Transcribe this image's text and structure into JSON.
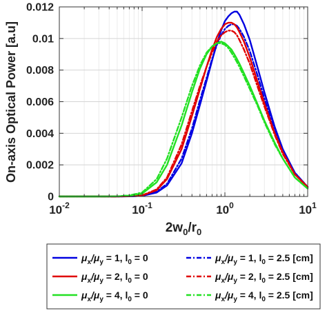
{
  "chart_data": {
    "type": "line",
    "xscale": "log",
    "xlim": [
      0.01,
      10
    ],
    "ylim": [
      0,
      0.012
    ],
    "grid": true,
    "legend_location": "bottom-outside",
    "x_tick_labels": [
      {
        "value": 0.01,
        "base": "10",
        "exp": "-2"
      },
      {
        "value": 0.1,
        "base": "10",
        "exp": "-1"
      },
      {
        "value": 1,
        "base": "10",
        "exp": "0"
      },
      {
        "value": 10,
        "base": "10",
        "exp": "1"
      }
    ],
    "y_tick_labels": [
      {
        "value": 0,
        "label": "0"
      },
      {
        "value": 0.002,
        "label": "0.002"
      },
      {
        "value": 0.004,
        "label": "0.004"
      },
      {
        "value": 0.006,
        "label": "0.006"
      },
      {
        "value": 0.008,
        "label": "0.008"
      },
      {
        "value": 0.01,
        "label": "0.01"
      },
      {
        "value": 0.012,
        "label": "0.012"
      }
    ],
    "xlabel": {
      "main": "2w",
      "sub1": "0",
      "mid": "/r",
      "sub2": "0"
    },
    "ylabel": "On-axis Optical Power [a.u]",
    "x": [
      0.01,
      0.02,
      0.03,
      0.05,
      0.07,
      0.1,
      0.15,
      0.2,
      0.3,
      0.4,
      0.5,
      0.6,
      0.7,
      0.8,
      0.9,
      1.0,
      1.1,
      1.2,
      1.3,
      1.4,
      1.5,
      1.7,
      2.0,
      2.5,
      3.0,
      4.0,
      5.0,
      7.0,
      10.0
    ],
    "series": [
      {
        "legend": {
          "a": "μ",
          "a_sub": "x",
          "b": "/μ",
          "b_sub": "y",
          "c": " = 1, l",
          "c_sub": "0",
          "d": " = 0"
        },
        "color": "#0000e0",
        "dash": "solid",
        "values": [
          0.0,
          0.0,
          0.0,
          0.0,
          1e-05,
          4e-05,
          0.00025,
          0.0007,
          0.0021,
          0.004,
          0.0058,
          0.0073,
          0.0086,
          0.0097,
          0.0105,
          0.0111,
          0.0114,
          0.0116,
          0.0117,
          0.0117,
          0.0115,
          0.0109,
          0.0099,
          0.0081,
          0.0066,
          0.0044,
          0.003,
          0.0015,
          0.0006
        ]
      },
      {
        "legend": {
          "a": "μ",
          "a_sub": "x",
          "b": "/μ",
          "b_sub": "y",
          "c": " = 1, l",
          "c_sub": "0",
          "d": " = 2.5 [cm]"
        },
        "color": "#0000e0",
        "dash": "dashdot",
        "values": [
          0.0,
          0.0,
          0.0,
          0.0,
          1e-05,
          4e-05,
          0.0003,
          0.0008,
          0.0024,
          0.0043,
          0.0061,
          0.0075,
          0.0087,
          0.0096,
          0.0102,
          0.0106,
          0.0108,
          0.0109,
          0.0109,
          0.0108,
          0.0106,
          0.0101,
          0.0092,
          0.0076,
          0.0062,
          0.0042,
          0.0029,
          0.0015,
          0.0006
        ]
      },
      {
        "legend": {
          "a": "μ",
          "a_sub": "x",
          "b": "/μ",
          "b_sub": "y",
          "c": " = 2, l",
          "c_sub": "0",
          "d": " = 0"
        },
        "color": "#e00000",
        "dash": "solid",
        "values": [
          0.0,
          0.0,
          0.0,
          0.0,
          2e-05,
          6e-05,
          0.0004,
          0.0011,
          0.003,
          0.0051,
          0.0068,
          0.0082,
          0.0093,
          0.0101,
          0.0106,
          0.0109,
          0.011,
          0.011,
          0.0109,
          0.0107,
          0.0104,
          0.0098,
          0.0088,
          0.0072,
          0.0059,
          0.004,
          0.0028,
          0.0014,
          0.0006
        ]
      },
      {
        "legend": {
          "a": "μ",
          "a_sub": "x",
          "b": "/μ",
          "b_sub": "y",
          "c": " = 2, l",
          "c_sub": "0",
          "d": " = 2.5 [cm]"
        },
        "color": "#e00000",
        "dash": "dashdot",
        "values": [
          0.0,
          0.0,
          0.0,
          0.0,
          2e-05,
          7e-05,
          0.00045,
          0.0012,
          0.0033,
          0.0054,
          0.007,
          0.0082,
          0.0091,
          0.0098,
          0.0102,
          0.0104,
          0.0105,
          0.0105,
          0.0104,
          0.0102,
          0.0099,
          0.0093,
          0.0084,
          0.0069,
          0.0057,
          0.0039,
          0.0027,
          0.0014,
          0.0006
        ]
      },
      {
        "legend": {
          "a": "μ",
          "a_sub": "x",
          "b": "/μ",
          "b_sub": "y",
          "c": " = 4, l",
          "c_sub": "0",
          "d": " = 0"
        },
        "color": "#22e022",
        "dash": "solid",
        "values": [
          0.0,
          0.0,
          0.0,
          1e-05,
          5e-05,
          0.00018,
          0.0009,
          0.002,
          0.0045,
          0.0066,
          0.0081,
          0.009,
          0.0095,
          0.0097,
          0.0098,
          0.0097,
          0.0095,
          0.0093,
          0.009,
          0.0087,
          0.0084,
          0.0078,
          0.007,
          0.0058,
          0.0048,
          0.0034,
          0.0024,
          0.0012,
          0.0005
        ]
      },
      {
        "legend": {
          "a": "μ",
          "a_sub": "x",
          "b": "/μ",
          "b_sub": "y",
          "c": " = 4, l",
          "c_sub": "0",
          "d": " = 2.5 [cm]"
        },
        "color": "#22e022",
        "dash": "dashdot",
        "values": [
          0.0,
          0.0,
          0.0,
          1e-05,
          7e-05,
          0.00025,
          0.0011,
          0.0024,
          0.005,
          0.007,
          0.0083,
          0.0091,
          0.0095,
          0.0097,
          0.0097,
          0.0096,
          0.0094,
          0.0091,
          0.0088,
          0.0085,
          0.0082,
          0.0076,
          0.0068,
          0.0057,
          0.0047,
          0.0033,
          0.0024,
          0.0012,
          0.0005
        ]
      }
    ]
  }
}
